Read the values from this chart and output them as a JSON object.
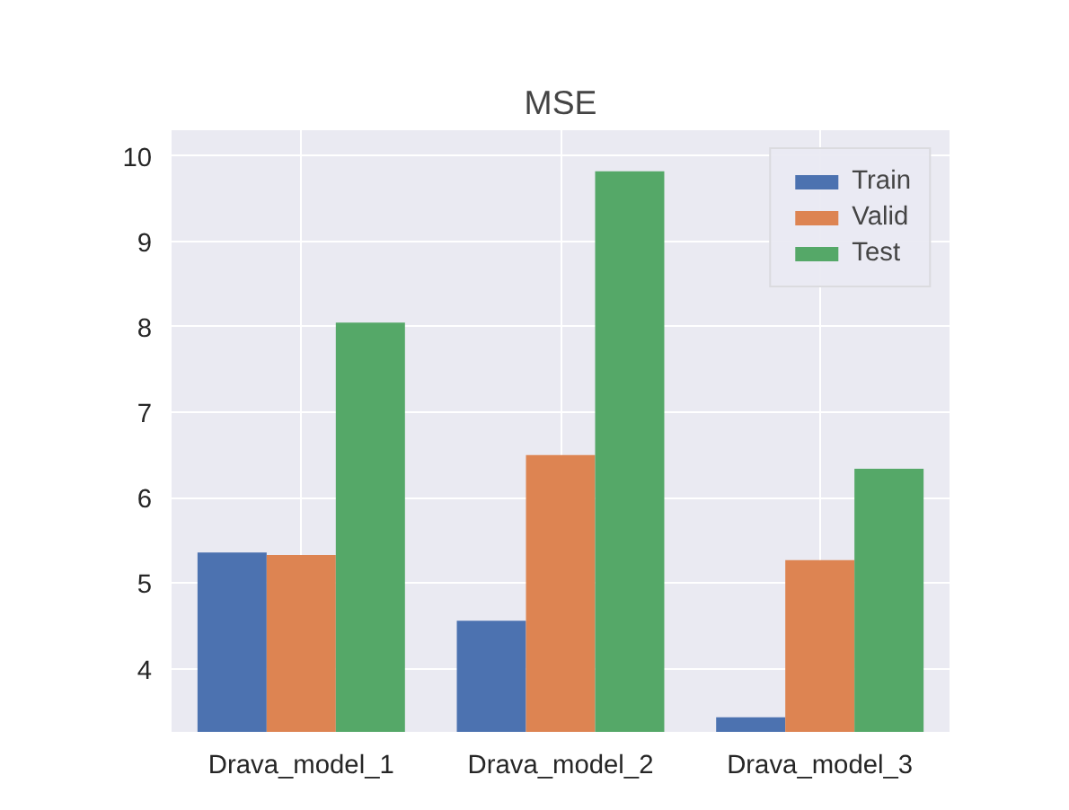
{
  "chart_data": {
    "type": "bar",
    "title": "MSE",
    "categories": [
      "Drava_model_1",
      "Drava_model_2",
      "Drava_model_3"
    ],
    "series": [
      {
        "name": "Train",
        "color": "#4c72b0",
        "values": [
          5.36,
          4.56,
          3.43
        ]
      },
      {
        "name": "Valid",
        "color": "#dd8452",
        "values": [
          5.33,
          6.5,
          5.27
        ]
      },
      {
        "name": "Test",
        "color": "#55a868",
        "values": [
          8.05,
          9.82,
          6.34
        ]
      }
    ],
    "ylim": [
      3.26,
      10.3
    ],
    "yticks": [
      4,
      5,
      6,
      7,
      8,
      9,
      10
    ],
    "grid": true,
    "legend": "top right"
  }
}
